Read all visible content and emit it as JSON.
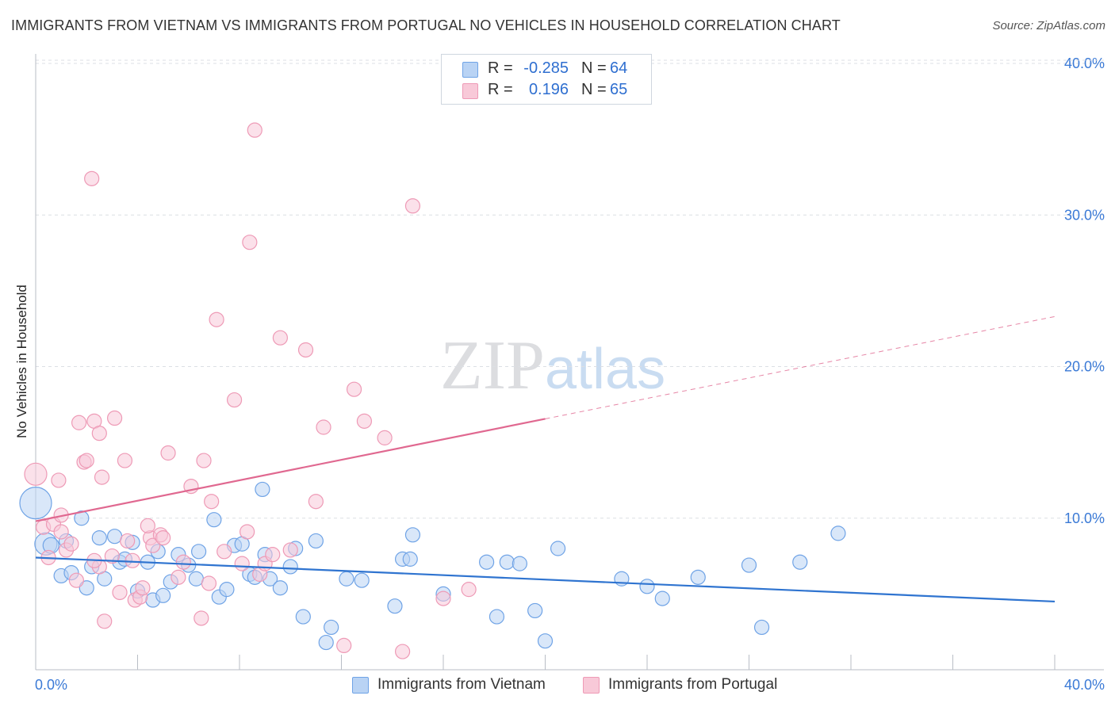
{
  "chart_data": {
    "type": "scatter",
    "title": "IMMIGRANTS FROM VIETNAM VS IMMIGRANTS FROM PORTUGAL NO VEHICLES IN HOUSEHOLD CORRELATION CHART",
    "source": "Source: ZipAtlas.com",
    "xlabel": "",
    "ylabel": "No Vehicles in Household",
    "xlim": [
      0,
      40
    ],
    "ylim": [
      0,
      40
    ],
    "x_tick_labels": [
      "0.0%",
      "40.0%"
    ],
    "y_tick_labels": [
      "10.0%",
      "20.0%",
      "30.0%",
      "40.0%"
    ],
    "y_ticks": [
      10,
      20,
      30,
      40
    ],
    "grid": true,
    "watermark": "ZIPatlas",
    "legend_stats": [
      {
        "r_label": "R =",
        "r_value": "-0.285",
        "n_label": "N =",
        "n_value": "64"
      },
      {
        "r_label": "R =",
        "r_value": "0.196",
        "n_label": "N =",
        "n_value": "65"
      }
    ],
    "series": [
      {
        "name": "Immigrants from Vietnam",
        "color": "#6fa3e6",
        "fill": "#b9d3f4",
        "line_color": "#2f74d0",
        "trend": {
          "x0": 0,
          "y0": 7.4,
          "x1": 40,
          "y1": 4.5,
          "dash_from": null
        },
        "points": [
          [
            0.0,
            11.0,
            20
          ],
          [
            0.4,
            8.3,
            14
          ],
          [
            0.6,
            8.2,
            10
          ],
          [
            1.0,
            6.2,
            9
          ],
          [
            1.2,
            8.5,
            9
          ],
          [
            1.4,
            6.4,
            9
          ],
          [
            2.0,
            5.4,
            9
          ],
          [
            1.8,
            10.0,
            9
          ],
          [
            2.2,
            6.8,
            9
          ],
          [
            2.5,
            8.7,
            9
          ],
          [
            2.7,
            6.0,
            9
          ],
          [
            3.1,
            8.8,
            9
          ],
          [
            3.3,
            7.1,
            9
          ],
          [
            3.5,
            7.3,
            9
          ],
          [
            3.8,
            8.4,
            9
          ],
          [
            4.0,
            5.2,
            9
          ],
          [
            4.4,
            7.1,
            9
          ],
          [
            4.6,
            4.6,
            9
          ],
          [
            4.8,
            7.8,
            9
          ],
          [
            5.0,
            4.9,
            9
          ],
          [
            5.3,
            5.8,
            9
          ],
          [
            5.6,
            7.6,
            9
          ],
          [
            6.0,
            6.9,
            9
          ],
          [
            6.3,
            6.0,
            9
          ],
          [
            6.4,
            7.8,
            9
          ],
          [
            7.0,
            9.9,
            9
          ],
          [
            7.2,
            4.8,
            9
          ],
          [
            7.5,
            5.3,
            9
          ],
          [
            7.8,
            8.2,
            9
          ],
          [
            8.1,
            8.3,
            9
          ],
          [
            8.4,
            6.3,
            9
          ],
          [
            8.6,
            6.1,
            9
          ],
          [
            8.9,
            11.9,
            9
          ],
          [
            9.0,
            7.6,
            9
          ],
          [
            9.2,
            6.0,
            9
          ],
          [
            9.6,
            5.4,
            9
          ],
          [
            10.0,
            6.8,
            9
          ],
          [
            10.2,
            8.0,
            9
          ],
          [
            10.5,
            3.5,
            9
          ],
          [
            11.0,
            8.5,
            9
          ],
          [
            11.4,
            1.8,
            9
          ],
          [
            11.6,
            2.8,
            9
          ],
          [
            12.2,
            6.0,
            9
          ],
          [
            12.8,
            5.9,
            9
          ],
          [
            14.1,
            4.2,
            9
          ],
          [
            14.4,
            7.3,
            9
          ],
          [
            14.8,
            8.9,
            9
          ],
          [
            14.7,
            7.3,
            9
          ],
          [
            16.0,
            5.0,
            9
          ],
          [
            17.7,
            7.1,
            9
          ],
          [
            18.1,
            3.5,
            9
          ],
          [
            18.5,
            7.1,
            9
          ],
          [
            19.0,
            7.0,
            9
          ],
          [
            19.6,
            3.9,
            9
          ],
          [
            20.0,
            1.9,
            9
          ],
          [
            20.5,
            8.0,
            9
          ],
          [
            23.0,
            6.0,
            9
          ],
          [
            24.0,
            5.5,
            9
          ],
          [
            24.6,
            4.7,
            9
          ],
          [
            26.0,
            6.1,
            9
          ],
          [
            28.0,
            6.9,
            9
          ],
          [
            28.5,
            2.8,
            9
          ],
          [
            30.0,
            7.1,
            9
          ],
          [
            31.5,
            9.0,
            9
          ]
        ]
      },
      {
        "name": "Immigrants from Portugal",
        "color": "#ee9ab6",
        "fill": "#f8c9d8",
        "line_color": "#e06890",
        "trend": {
          "x0": 0,
          "y0": 9.8,
          "x1": 40,
          "y1": 23.3,
          "dash_from": 20
        },
        "points": [
          [
            0.0,
            12.9,
            14
          ],
          [
            0.3,
            9.4,
            9
          ],
          [
            0.5,
            7.4,
            9
          ],
          [
            0.7,
            9.6,
            9
          ],
          [
            0.9,
            12.5,
            9
          ],
          [
            1.0,
            10.2,
            9
          ],
          [
            1.2,
            7.9,
            9
          ],
          [
            1.4,
            8.3,
            9
          ],
          [
            1.6,
            5.9,
            9
          ],
          [
            1.7,
            16.3,
            9
          ],
          [
            1.9,
            13.7,
            9
          ],
          [
            2.0,
            13.8,
            9
          ],
          [
            2.2,
            32.4,
            9
          ],
          [
            2.3,
            16.4,
            9
          ],
          [
            2.5,
            6.8,
            9
          ],
          [
            2.5,
            15.6,
            9
          ],
          [
            2.6,
            12.7,
            9
          ],
          [
            2.7,
            3.2,
            9
          ],
          [
            3.1,
            16.6,
            9
          ],
          [
            3.3,
            5.1,
            9
          ],
          [
            3.5,
            13.8,
            9
          ],
          [
            3.6,
            8.5,
            9
          ],
          [
            3.8,
            7.2,
            9
          ],
          [
            3.9,
            4.6,
            9
          ],
          [
            4.1,
            4.8,
            9
          ],
          [
            4.2,
            5.4,
            9
          ],
          [
            4.5,
            8.7,
            9
          ],
          [
            4.4,
            9.5,
            9
          ],
          [
            4.6,
            8.2,
            9
          ],
          [
            4.9,
            8.9,
            9
          ],
          [
            5.0,
            8.7,
            9
          ],
          [
            5.2,
            14.3,
            9
          ],
          [
            5.6,
            6.1,
            9
          ],
          [
            6.1,
            12.1,
            9
          ],
          [
            6.5,
            3.4,
            9
          ],
          [
            6.6,
            13.8,
            9
          ],
          [
            6.8,
            5.7,
            9
          ],
          [
            6.9,
            11.1,
            9
          ],
          [
            7.1,
            23.1,
            9
          ],
          [
            7.4,
            7.8,
            9
          ],
          [
            7.8,
            17.8,
            9
          ],
          [
            8.1,
            7.0,
            9
          ],
          [
            8.3,
            9.1,
            9
          ],
          [
            8.4,
            28.2,
            9
          ],
          [
            8.6,
            35.6,
            9
          ],
          [
            8.8,
            6.3,
            9
          ],
          [
            9.0,
            7.0,
            9
          ],
          [
            9.3,
            7.6,
            9
          ],
          [
            9.6,
            21.9,
            9
          ],
          [
            10.0,
            7.9,
            9
          ],
          [
            10.6,
            21.1,
            9
          ],
          [
            11.0,
            11.1,
            9
          ],
          [
            11.3,
            16.0,
            9
          ],
          [
            12.1,
            1.6,
            9
          ],
          [
            12.5,
            18.5,
            9
          ],
          [
            12.9,
            16.4,
            9
          ],
          [
            13.7,
            15.3,
            9
          ],
          [
            14.4,
            1.2,
            9
          ],
          [
            14.8,
            30.6,
            9
          ],
          [
            16.0,
            4.7,
            9
          ],
          [
            17.0,
            5.3,
            9
          ],
          [
            3.0,
            7.5,
            9
          ],
          [
            5.8,
            7.1,
            9
          ],
          [
            1.0,
            9.1,
            9
          ],
          [
            2.3,
            7.2,
            9
          ]
        ]
      }
    ]
  },
  "legend_bottom": [
    {
      "label": "Immigrants from Vietnam"
    },
    {
      "label": "Immigrants from Portugal"
    }
  ]
}
